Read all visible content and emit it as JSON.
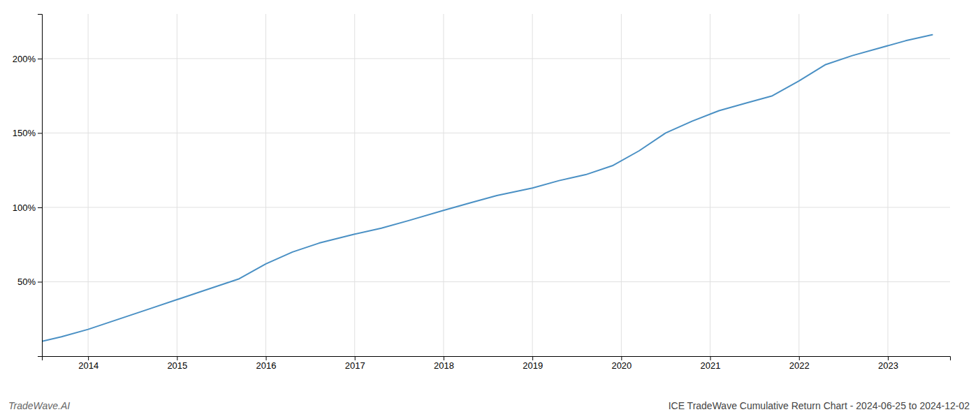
{
  "chart_data": {
    "type": "line",
    "title": "ICE TradeWave Cumulative Return Chart - 2024-06-25 to 2024-12-02",
    "annotations": [
      "TradeWave.AI"
    ],
    "x": [
      2013.48,
      2013.7,
      2014.0,
      2014.3,
      2014.7,
      2015.0,
      2015.3,
      2015.7,
      2016.0,
      2016.3,
      2016.6,
      2017.0,
      2017.3,
      2017.6,
      2018.0,
      2018.3,
      2018.6,
      2019.0,
      2019.3,
      2019.6,
      2019.9,
      2020.2,
      2020.5,
      2020.8,
      2021.1,
      2021.4,
      2021.7,
      2022.0,
      2022.3,
      2022.6,
      2022.9,
      2023.2,
      2023.5
    ],
    "values": [
      10,
      13,
      18,
      24,
      32,
      38,
      44,
      52,
      62,
      70,
      76,
      82,
      86,
      91,
      98,
      103,
      108,
      113,
      118,
      122,
      128,
      138,
      150,
      158,
      165,
      170,
      175,
      185,
      196,
      202,
      207,
      212,
      216
    ],
    "color": "#4a90c4",
    "xlim": [
      2013.48,
      2023.7
    ],
    "ylim": [
      0,
      230
    ],
    "xticks": [
      2014,
      2015,
      2016,
      2017,
      2018,
      2019,
      2020,
      2021,
      2022,
      2023
    ],
    "yticks": [
      {
        "value": 50,
        "label": "50%"
      },
      {
        "value": 100,
        "label": "100%"
      },
      {
        "value": 150,
        "label": "150%"
      },
      {
        "value": 200,
        "label": "200%"
      }
    ],
    "grid": true
  }
}
